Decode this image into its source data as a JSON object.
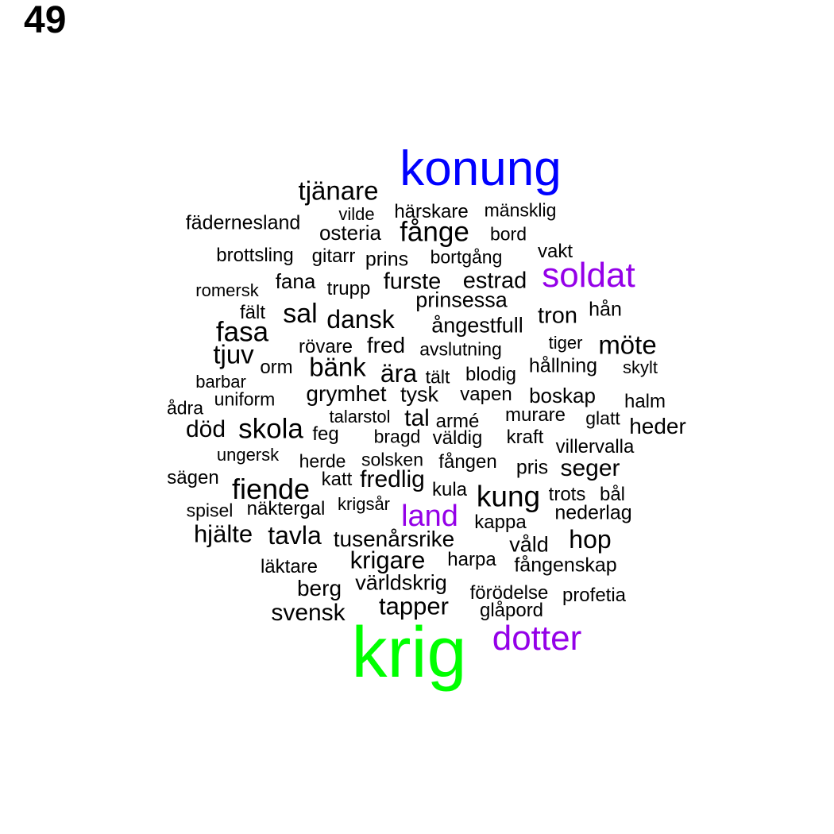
{
  "page_number": "49",
  "colors": {
    "black": "#000000",
    "blue": "#0000ff",
    "purple": "#9400e8",
    "green": "#00ff00"
  },
  "words": [
    {
      "text": "konung",
      "color": "blue",
      "weight": 5
    },
    {
      "text": "krig",
      "color": "green",
      "weight": 10
    },
    {
      "text": "dotter",
      "color": "purple",
      "weight": 4
    },
    {
      "text": "soldat",
      "color": "purple",
      "weight": 4
    },
    {
      "text": "land",
      "color": "purple",
      "weight": 3
    },
    {
      "text": "tjänare",
      "color": "black",
      "weight": 2
    },
    {
      "text": "fädernesland",
      "color": "black",
      "weight": 1
    },
    {
      "text": "vilde",
      "color": "black",
      "weight": 1
    },
    {
      "text": "härskare",
      "color": "black",
      "weight": 1
    },
    {
      "text": "mänsklig",
      "color": "black",
      "weight": 1
    },
    {
      "text": "osteria",
      "color": "black",
      "weight": 1
    },
    {
      "text": "fånge",
      "color": "black",
      "weight": 2
    },
    {
      "text": "bord",
      "color": "black",
      "weight": 1
    },
    {
      "text": "brottsling",
      "color": "black",
      "weight": 1
    },
    {
      "text": "gitarr",
      "color": "black",
      "weight": 1
    },
    {
      "text": "prins",
      "color": "black",
      "weight": 1
    },
    {
      "text": "bortgång",
      "color": "black",
      "weight": 1
    },
    {
      "text": "vakt",
      "color": "black",
      "weight": 1
    },
    {
      "text": "romersk",
      "color": "black",
      "weight": 1
    },
    {
      "text": "fana",
      "color": "black",
      "weight": 1
    },
    {
      "text": "trupp",
      "color": "black",
      "weight": 1
    },
    {
      "text": "furste",
      "color": "black",
      "weight": 2
    },
    {
      "text": "estrad",
      "color": "black",
      "weight": 2
    },
    {
      "text": "fält",
      "color": "black",
      "weight": 1
    },
    {
      "text": "sal",
      "color": "black",
      "weight": 2
    },
    {
      "text": "dansk",
      "color": "black",
      "weight": 2
    },
    {
      "text": "prinsessa",
      "color": "black",
      "weight": 1
    },
    {
      "text": "tron",
      "color": "black",
      "weight": 2
    },
    {
      "text": "hån",
      "color": "black",
      "weight": 1
    },
    {
      "text": "fasa",
      "color": "black",
      "weight": 2
    },
    {
      "text": "ångestfull",
      "color": "black",
      "weight": 1
    },
    {
      "text": "tjuv",
      "color": "black",
      "weight": 2
    },
    {
      "text": "rövare",
      "color": "black",
      "weight": 1
    },
    {
      "text": "fred",
      "color": "black",
      "weight": 1
    },
    {
      "text": "avslutning",
      "color": "black",
      "weight": 1
    },
    {
      "text": "tiger",
      "color": "black",
      "weight": 1
    },
    {
      "text": "möte",
      "color": "black",
      "weight": 2
    },
    {
      "text": "orm",
      "color": "black",
      "weight": 1
    },
    {
      "text": "bänk",
      "color": "black",
      "weight": 2
    },
    {
      "text": "ära",
      "color": "black",
      "weight": 2
    },
    {
      "text": "tält",
      "color": "black",
      "weight": 1
    },
    {
      "text": "blodig",
      "color": "black",
      "weight": 1
    },
    {
      "text": "hållning",
      "color": "black",
      "weight": 1
    },
    {
      "text": "skylt",
      "color": "black",
      "weight": 1
    },
    {
      "text": "barbar",
      "color": "black",
      "weight": 1
    },
    {
      "text": "grymhet",
      "color": "black",
      "weight": 1
    },
    {
      "text": "tysk",
      "color": "black",
      "weight": 1
    },
    {
      "text": "vapen",
      "color": "black",
      "weight": 1
    },
    {
      "text": "boskap",
      "color": "black",
      "weight": 1
    },
    {
      "text": "uniform",
      "color": "black",
      "weight": 1
    },
    {
      "text": "halm",
      "color": "black",
      "weight": 1
    },
    {
      "text": "ådra",
      "color": "black",
      "weight": 1
    },
    {
      "text": "talarstol",
      "color": "black",
      "weight": 1
    },
    {
      "text": "tal",
      "color": "black",
      "weight": 2
    },
    {
      "text": "armé",
      "color": "black",
      "weight": 1
    },
    {
      "text": "murare",
      "color": "black",
      "weight": 1
    },
    {
      "text": "glatt",
      "color": "black",
      "weight": 1
    },
    {
      "text": "heder",
      "color": "black",
      "weight": 1
    },
    {
      "text": "död",
      "color": "black",
      "weight": 2
    },
    {
      "text": "skola",
      "color": "black",
      "weight": 2
    },
    {
      "text": "feg",
      "color": "black",
      "weight": 1
    },
    {
      "text": "bragd",
      "color": "black",
      "weight": 1
    },
    {
      "text": "väldig",
      "color": "black",
      "weight": 1
    },
    {
      "text": "kraft",
      "color": "black",
      "weight": 1
    },
    {
      "text": "villervalla",
      "color": "black",
      "weight": 1
    },
    {
      "text": "ungersk",
      "color": "black",
      "weight": 1
    },
    {
      "text": "herde",
      "color": "black",
      "weight": 1
    },
    {
      "text": "solsken",
      "color": "black",
      "weight": 1
    },
    {
      "text": "fången",
      "color": "black",
      "weight": 1
    },
    {
      "text": "pris",
      "color": "black",
      "weight": 1
    },
    {
      "text": "seger",
      "color": "black",
      "weight": 2
    },
    {
      "text": "sägen",
      "color": "black",
      "weight": 1
    },
    {
      "text": "fiende",
      "color": "black",
      "weight": 2
    },
    {
      "text": "katt",
      "color": "black",
      "weight": 1
    },
    {
      "text": "fredlig",
      "color": "black",
      "weight": 2
    },
    {
      "text": "kula",
      "color": "black",
      "weight": 1
    },
    {
      "text": "kung",
      "color": "black",
      "weight": 2
    },
    {
      "text": "trots",
      "color": "black",
      "weight": 1
    },
    {
      "text": "bål",
      "color": "black",
      "weight": 1
    },
    {
      "text": "spisel",
      "color": "black",
      "weight": 1
    },
    {
      "text": "näktergal",
      "color": "black",
      "weight": 1
    },
    {
      "text": "krigsår",
      "color": "black",
      "weight": 1
    },
    {
      "text": "nederlag",
      "color": "black",
      "weight": 1
    },
    {
      "text": "kappa",
      "color": "black",
      "weight": 1
    },
    {
      "text": "hjälte",
      "color": "black",
      "weight": 2
    },
    {
      "text": "tavla",
      "color": "black",
      "weight": 2
    },
    {
      "text": "tusenårsrike",
      "color": "black",
      "weight": 1
    },
    {
      "text": "våld",
      "color": "black",
      "weight": 1
    },
    {
      "text": "hop",
      "color": "black",
      "weight": 2
    },
    {
      "text": "krigare",
      "color": "black",
      "weight": 2
    },
    {
      "text": "harpa",
      "color": "black",
      "weight": 1
    },
    {
      "text": "läktare",
      "color": "black",
      "weight": 1
    },
    {
      "text": "fångenskap",
      "color": "black",
      "weight": 1
    },
    {
      "text": "världskrig",
      "color": "black",
      "weight": 1
    },
    {
      "text": "berg",
      "color": "black",
      "weight": 1
    },
    {
      "text": "förödelse",
      "color": "black",
      "weight": 1
    },
    {
      "text": "profetia",
      "color": "black",
      "weight": 1
    },
    {
      "text": "tapper",
      "color": "black",
      "weight": 2
    },
    {
      "text": "glåpord",
      "color": "black",
      "weight": 1
    },
    {
      "text": "svensk",
      "color": "black",
      "weight": 2
    }
  ]
}
